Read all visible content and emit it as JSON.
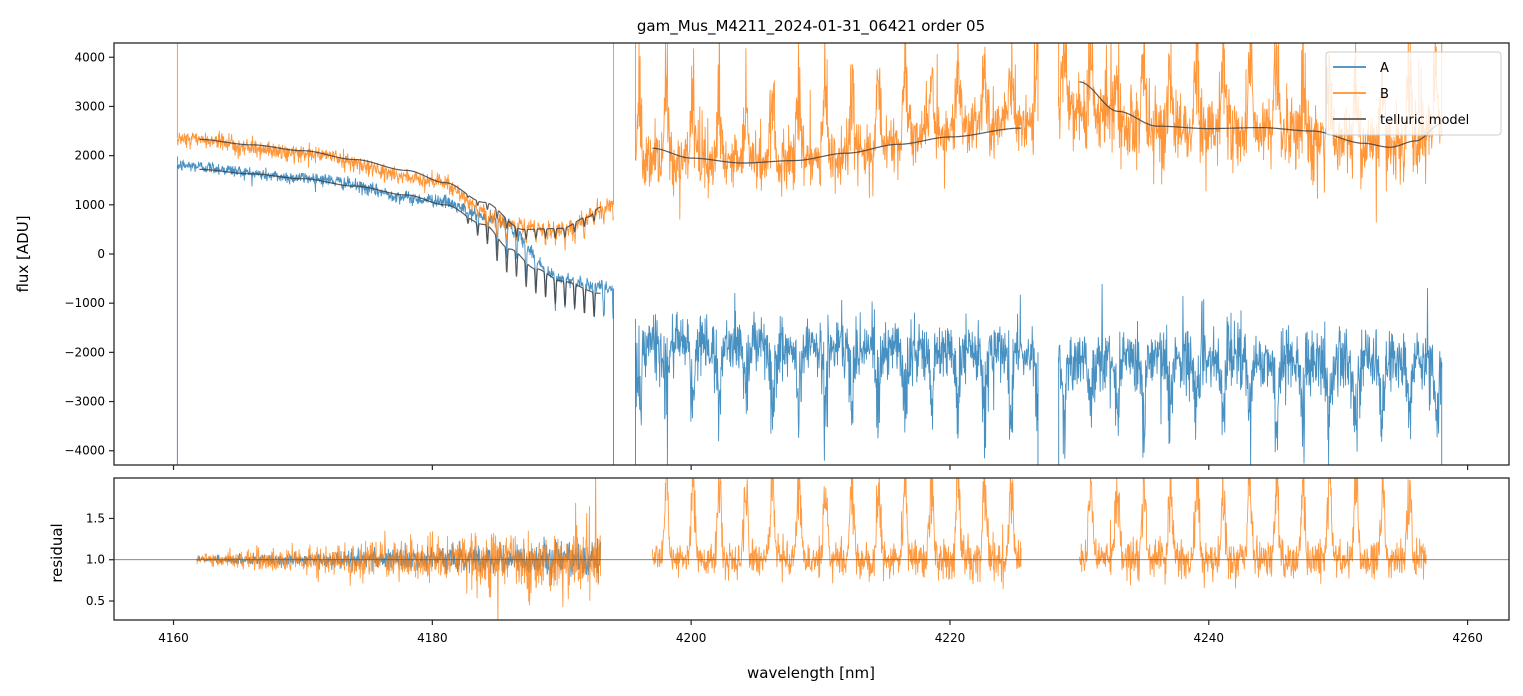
{
  "chart_data": [
    {
      "type": "line",
      "panel": "top",
      "title": "gam_Mus_M4211_2024-01-31_06421  order 05",
      "xlabel": "",
      "ylabel": "flux [ADU]",
      "xlim": [
        4155.4,
        4263.2
      ],
      "ylim": [
        -4290,
        4290
      ],
      "xticks": [
        4160,
        4180,
        4200,
        4220,
        4240,
        4260
      ],
      "xtick_labels": [
        "",
        "",
        "",
        "",
        "",
        ""
      ],
      "yticks": [
        4000,
        3000,
        2000,
        1000,
        0,
        -1000,
        -2000,
        -3000,
        -4000
      ],
      "ytick_labels": [
        "4000",
        "3000",
        "2000",
        "1000",
        "0",
        "−1000",
        "−2000",
        "−3000",
        "−4000"
      ],
      "grid": false,
      "legend": {
        "position": "top-right",
        "entries": [
          {
            "label": "A",
            "color": "#1f77b4"
          },
          {
            "label": "B",
            "color": "#ff7f0e"
          },
          {
            "label": "telluric model",
            "color": "#404040"
          }
        ]
      },
      "series": [
        {
          "name": "A",
          "color": "#1f77b4",
          "segments": [
            {
              "x": [
                4160.3,
                4194.0
              ],
              "baseline": [
                [
                  4160.3,
                  1800
                ],
                [
                  4170,
                  1550
                ],
                [
                  4180,
                  1100
                ],
                [
                  4185,
                  700
                ],
                [
                  4190,
                  -500
                ],
                [
                  4194.0,
                  -700
                ]
              ],
              "noise": 120,
              "fringe": {
                "start": 4182,
                "amp": 600,
                "period": 0.75
              }
            },
            {
              "x": [
                4195.7,
                4226.8
              ],
              "baseline": [
                [
                  4195.7,
                  -1800
                ],
                [
                  4226.8,
                  -2000
                ]
              ],
              "noise": 550,
              "spikes": 1500
            },
            {
              "x": [
                4228.4,
                4258.0
              ],
              "baseline": [
                [
                  4228.4,
                  -2100
                ],
                [
                  4258.0,
                  -2200
                ]
              ],
              "noise": 600,
              "spikes": 1500
            }
          ]
        },
        {
          "name": "B",
          "color": "#ff7f0e",
          "segments": [
            {
              "x": [
                4160.3,
                4194.0
              ],
              "baseline": [
                [
                  4160.3,
                  2350
                ],
                [
                  4170,
                  2050
                ],
                [
                  4180,
                  1500
                ],
                [
                  4186,
                  600
                ],
                [
                  4190,
                  500
                ],
                [
                  4194.0,
                  1000
                ]
              ],
              "noise": 150,
              "fringe": {
                "start": 4182,
                "amp": 300,
                "period": 0.75
              }
            },
            {
              "x": [
                4195.7,
                4226.8
              ],
              "baseline": [
                [
                  4195.7,
                  1900
                ],
                [
                  4205,
                  1850
                ],
                [
                  4226.8,
                  2700
                ]
              ],
              "noise": 500,
              "spikes": 1800
            },
            {
              "x": [
                4228.4,
                4258.0
              ],
              "baseline": [
                [
                  4228.4,
                  3000
                ],
                [
                  4236,
                  2500
                ],
                [
                  4246,
                  2500
                ],
                [
                  4254,
                  2200
                ],
                [
                  4258.0,
                  2400
                ]
              ],
              "noise": 650,
              "spikes": 1800
            }
          ]
        },
        {
          "name": "telluric model",
          "color": "#404040",
          "curves": [
            {
              "points": [
                [
                  4162,
                  2330
                ],
                [
                  4166,
                  2220
                ],
                [
                  4170,
                  2100
                ],
                [
                  4174,
                  1920
                ],
                [
                  4178,
                  1700
                ],
                [
                  4181,
                  1450
                ],
                [
                  4184,
                  1050
                ],
                [
                  4187,
                  500
                ],
                [
                  4190,
                  520
                ],
                [
                  4192,
                  750
                ],
                [
                  4193,
                  950
                ]
              ],
              "fringe": {
                "start": 4182,
                "amp": 180,
                "period": 0.75
              }
            },
            {
              "points": [
                [
                  4162,
                  1720
                ],
                [
                  4166,
                  1630
                ],
                [
                  4170,
                  1530
                ],
                [
                  4174,
                  1380
                ],
                [
                  4178,
                  1200
                ],
                [
                  4181,
                  1000
                ],
                [
                  4184,
                  600
                ],
                [
                  4186,
                  100
                ],
                [
                  4188,
                  -300
                ],
                [
                  4190,
                  -550
                ],
                [
                  4193,
                  -800
                ]
              ],
              "fringe": {
                "start": 4182,
                "amp": 500,
                "period": 0.75
              }
            },
            {
              "points": [
                [
                  4197,
                  2150
                ],
                [
                  4200,
                  1950
                ],
                [
                  4204,
                  1850
                ],
                [
                  4208,
                  1900
                ],
                [
                  4212,
                  2050
                ],
                [
                  4216,
                  2230
                ],
                [
                  4220,
                  2380
                ],
                [
                  4225.5,
                  2560
                ]
              ]
            },
            {
              "points": [
                [
                  4230,
                  3500
                ],
                [
                  4233,
                  2900
                ],
                [
                  4236,
                  2600
                ],
                [
                  4240,
                  2550
                ],
                [
                  4244,
                  2570
                ],
                [
                  4248,
                  2500
                ],
                [
                  4252,
                  2250
                ],
                [
                  4254,
                  2170
                ],
                [
                  4256,
                  2300
                ],
                [
                  4258,
                  2650
                ]
              ]
            }
          ]
        }
      ]
    },
    {
      "type": "line",
      "panel": "bottom",
      "xlabel": "wavelength [nm]",
      "ylabel": "residual",
      "xlim": [
        4155.4,
        4263.2
      ],
      "ylim": [
        0.27,
        1.99
      ],
      "xticks": [
        4160,
        4180,
        4200,
        4220,
        4240,
        4260
      ],
      "xtick_labels": [
        "4160",
        "4180",
        "4200",
        "4220",
        "4240",
        "4260"
      ],
      "yticks": [
        1.5,
        1.0,
        0.5
      ],
      "ytick_labels": [
        "1.5",
        "1.0",
        "0.5"
      ],
      "reference_line": 1.0,
      "grid": false,
      "series": [
        {
          "name": "A",
          "color": "#1f77b4",
          "segments": [
            {
              "x": [
                4161.8,
                4193.0
              ],
              "center": 1.0,
              "noise_start": 0.03,
              "noise_end": 0.25
            }
          ]
        },
        {
          "name": "B",
          "color": "#ff7f0e",
          "segments": [
            {
              "x": [
                4161.8,
                4193.0
              ],
              "center": 1.0,
              "noise_start": 0.07,
              "noise_end": 0.45
            },
            {
              "x": [
                4197.0,
                4225.5
              ],
              "center": 1.0,
              "noise_start": 0.22,
              "noise_end": 0.3
            },
            {
              "x": [
                4230.0,
                4256.8
              ],
              "center": 1.0,
              "noise_start": 0.28,
              "noise_end": 0.25
            }
          ]
        }
      ]
    }
  ]
}
